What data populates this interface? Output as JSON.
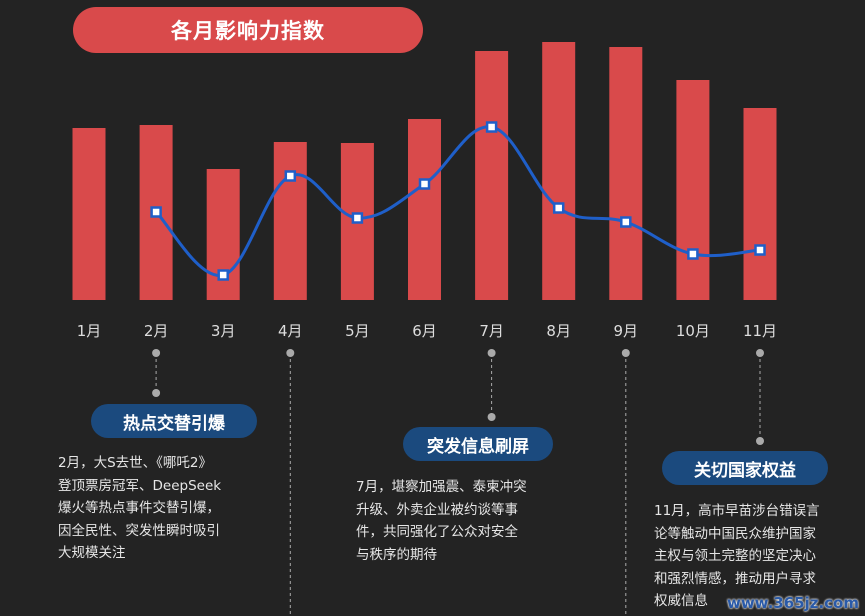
{
  "chart_data": {
    "type": "bar",
    "title": "各月影响力指数",
    "categories": [
      "1月",
      "2月",
      "3月",
      "4月",
      "5月",
      "6月",
      "7月",
      "8月",
      "9月",
      "10月",
      "11月"
    ],
    "series": [
      {
        "name": "bar",
        "type": "bar",
        "values": [
          172,
          175,
          131,
          158,
          157,
          181,
          249,
          258,
          253,
          220,
          192
        ]
      },
      {
        "name": "line",
        "type": "line",
        "values": [
          null,
          88,
          25,
          124,
          82,
          116,
          173,
          92,
          78,
          46,
          50
        ]
      }
    ],
    "colors": {
      "bar": "#d94a4b",
      "line": "#1f5fc9"
    }
  },
  "annotations": [
    {
      "title": "热点交替引爆",
      "lines": [
        "2月，大S去世、《哪吒2》",
        "登顶票房冠军、DeepSeek",
        "爆火等热点事件交替引爆，",
        "因全民性、突发性瞬时吸引",
        "大规模关注"
      ]
    },
    {
      "title": "突发信息刷屏",
      "lines": [
        "7月，堪察加强震、泰柬冲突",
        "升级、外卖企业被约谈等事",
        "件，共同强化了公众对安全",
        "与秩序的期待"
      ]
    },
    {
      "title": "关切国家权益",
      "lines": [
        "11月，高市早苗涉台错误言",
        "论等触动中国民众维护国家",
        "主权与领土完整的坚定决心",
        "和强烈情感，推动用户寻求",
        "权威信息"
      ]
    }
  ],
  "watermark": "www.365jz.com"
}
